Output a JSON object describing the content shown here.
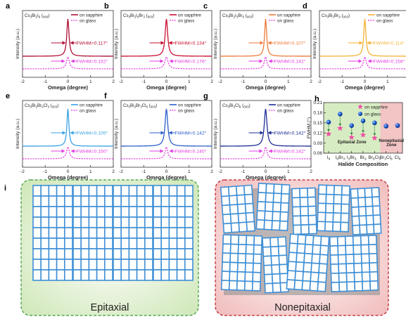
{
  "figure": {
    "panel_i_label": "i",
    "epitaxial_label": "Epitaxial",
    "nonepitaxial_label": "Nonepitaxial"
  },
  "legend": {
    "sapphire": "on sapphire",
    "glass": "on glass"
  },
  "colors": {
    "a": "#b01035",
    "b": "#c81030",
    "c": "#ee7a3c",
    "d": "#f5b235",
    "e": "#3aa2e4",
    "f": "#2b5ec8",
    "g": "#1d2d92",
    "glass": "#e23ee0",
    "epitaxial_bg": "#d7ecc3",
    "nonepitaxial_bg": "#f3c5c5",
    "tile": "#3f8fd6",
    "gap": "#8a8a8a"
  },
  "axis_common": {
    "xlabel": "Omega (degree)",
    "ylabel": "Intensity (a.u.)",
    "xticks": [
      "-2",
      "-1",
      "0",
      "1",
      "2"
    ],
    "xlim": [
      -2,
      2
    ]
  },
  "chart_data": [
    {
      "type": "line",
      "panel": "a",
      "title": "Cs3Bi2I9 (006)",
      "xlabel": "Omega (degree)",
      "ylabel": "Intensity (a.u.)",
      "xlim": [
        -2,
        2
      ],
      "series": [
        {
          "name": "on sapphire",
          "fwhm": 0.117,
          "label": "FWHM=0.117°"
        },
        {
          "name": "on glass",
          "fwhm": 0.152,
          "label": "FWHM=0.152°"
        }
      ]
    },
    {
      "type": "line",
      "panel": "b",
      "title": "Cs3Bi2I6Br3 (003)",
      "xlabel": "Omega (degree)",
      "ylabel": "Intensity (a.u.)",
      "xlim": [
        -2,
        2
      ],
      "series": [
        {
          "name": "on sapphire",
          "fwhm": 0.134,
          "label": "FWHM=0.134°"
        },
        {
          "name": "on glass",
          "fwhm": 0.176,
          "label": "FWHM=0.176°"
        }
      ]
    },
    {
      "type": "line",
      "panel": "c",
      "title": "Cs3Bi2I3Br6 (003)",
      "xlabel": "Omega (degree)",
      "ylabel": "Intensity (a.u.)",
      "xlim": [
        -2,
        2
      ],
      "series": [
        {
          "name": "on sapphire",
          "fwhm": 0.107,
          "label": "FWHM=0.107°"
        },
        {
          "name": "on glass",
          "fwhm": 0.142,
          "label": "FWHM=0.142°"
        }
      ]
    },
    {
      "type": "line",
      "panel": "d",
      "title": "Cs3Bi2Br9 (003)",
      "xlabel": "Omega (degree)",
      "ylabel": "Intensity (a.u.)",
      "xlim": [
        -2,
        2
      ],
      "series": [
        {
          "name": "on sapphire",
          "fwhm": 0.114,
          "label": "FWHM=0.114°"
        },
        {
          "name": "on glass",
          "fwhm": 0.156,
          "label": "FWHM=0.156°"
        }
      ]
    },
    {
      "type": "line",
      "panel": "e",
      "title": "Cs3Bi2Br6Cl3 (003)",
      "xlabel": "Omega (degree)",
      "ylabel": "Intensity (a.u.)",
      "xlim": [
        -2,
        2
      ],
      "series": [
        {
          "name": "on sapphire",
          "fwhm": 0.105,
          "label": "FWHM=0.105°"
        },
        {
          "name": "on glass",
          "fwhm": 0.15,
          "label": "FWHM=0.150°"
        }
      ]
    },
    {
      "type": "line",
      "panel": "f",
      "title": "Cs3Bi2Br3Cl6 (003)",
      "xlabel": "Omega (degree)",
      "ylabel": "Intensity (a.u.)",
      "xlim": [
        -2,
        2
      ],
      "series": [
        {
          "name": "on sapphire",
          "fwhm": 0.142,
          "label": "FWHM=0.142°"
        },
        {
          "name": "on glass",
          "fwhm": 0.14,
          "label": "FWHM=0.140°"
        }
      ]
    },
    {
      "type": "line",
      "panel": "g",
      "title": "Cs3Bi2Cl9 (003)",
      "xlabel": "Omega (degree)",
      "ylabel": "Intensity (a.u.)",
      "xlim": [
        -2,
        2
      ],
      "series": [
        {
          "name": "on sapphire",
          "fwhm": 0.142,
          "label": "FWHM=0.142°"
        },
        {
          "name": "on glass",
          "fwhm": 0.142,
          "label": "FWHM=0.142°"
        }
      ]
    },
    {
      "type": "scatter",
      "panel": "h",
      "xlabel": "Halide Composition",
      "ylabel": "FWHM (°)",
      "categories": [
        "I9",
        "I6Br3",
        "I3Br6",
        "Br9",
        "Br6Cl3",
        "Br3Cl6",
        "Cl9"
      ],
      "yticks": [
        "0.06",
        "0.09",
        "0.12",
        "0.15",
        "0.18",
        "0.21"
      ],
      "ylim": [
        0.06,
        0.21
      ],
      "zones": [
        "Epitaxial Zone",
        "Nonepitaxial Zone"
      ],
      "series": [
        {
          "name": "on sapphire",
          "values": [
            0.117,
            0.134,
            0.107,
            0.114,
            0.105,
            0.142,
            0.142
          ]
        },
        {
          "name": "on glass",
          "values": [
            0.152,
            0.176,
            0.142,
            0.156,
            0.15,
            0.14,
            0.142
          ]
        }
      ]
    }
  ]
}
